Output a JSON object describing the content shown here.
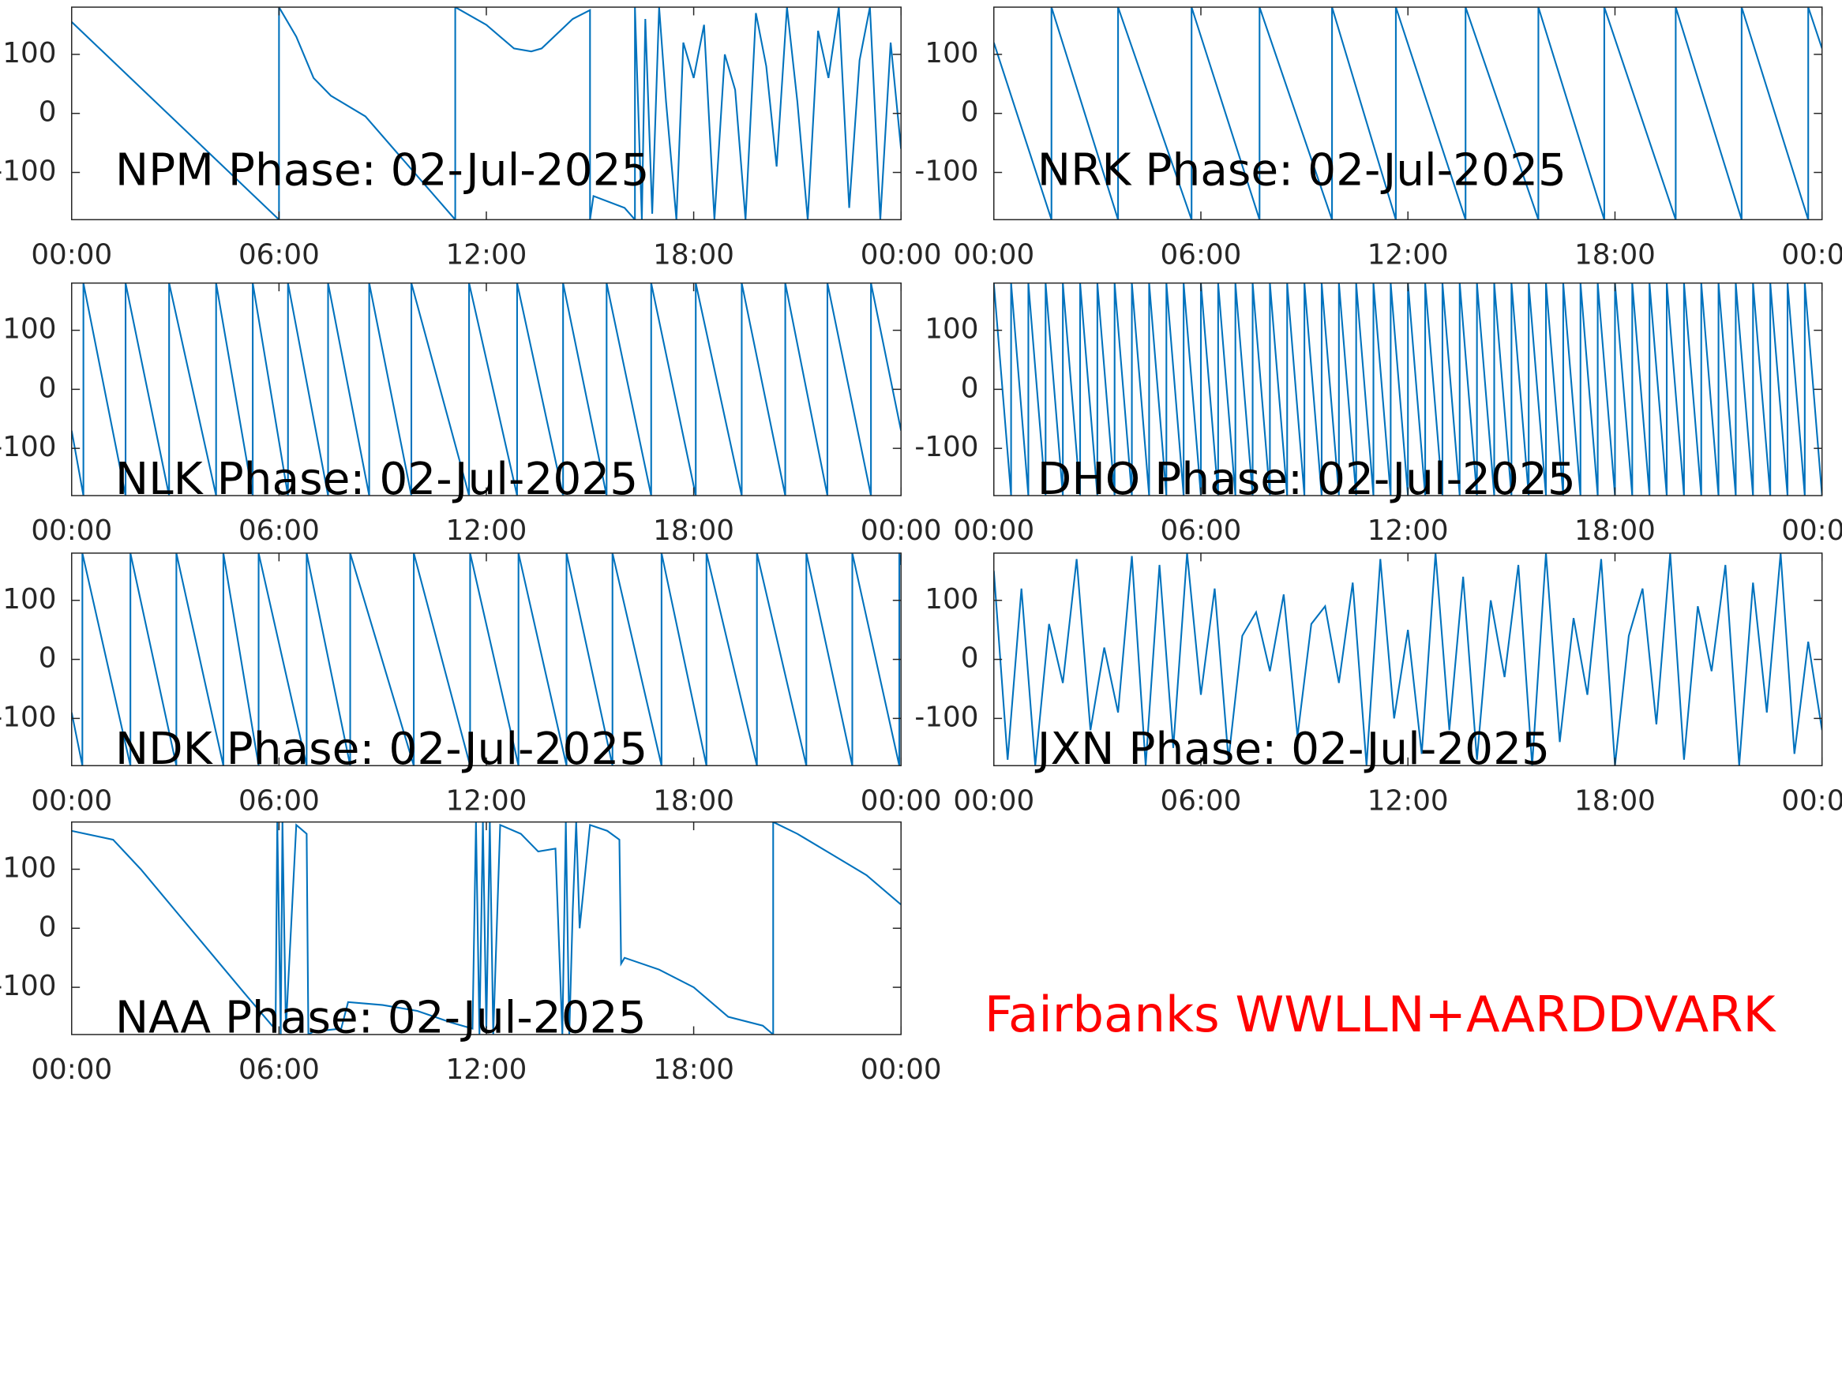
{
  "chart_data": [
    {
      "type": "line",
      "title": "NPM Phase: 02-Jul-2025",
      "color": "#0072bd",
      "x": [
        0,
        6.0,
        6.0,
        6.5,
        7.0,
        7.5,
        8.5,
        11.1,
        11.1,
        12.0,
        12.8,
        13.3,
        13.6,
        14.5,
        15.0,
        15.0,
        15.1,
        16.0,
        16.3,
        16.3,
        16.5,
        16.6,
        16.8,
        17.0,
        17.2,
        17.5,
        17.7,
        18.0,
        18.3,
        18.6,
        18.9,
        19.2,
        19.5,
        19.8,
        20.1,
        20.4,
        20.7,
        21.0,
        21.3,
        21.6,
        21.9,
        22.2,
        22.5,
        22.8,
        23.1,
        23.4,
        23.7,
        24.0
      ],
      "values": [
        155,
        -180,
        180,
        130,
        60,
        30,
        -5,
        -180,
        180,
        150,
        110,
        105,
        110,
        160,
        175,
        -180,
        -140,
        -160,
        -180,
        180,
        -180,
        160,
        -170,
        180,
        20,
        -180,
        120,
        60,
        150,
        -180,
        100,
        40,
        -180,
        170,
        80,
        -90,
        180,
        20,
        -180,
        140,
        60,
        180,
        -160,
        90,
        180,
        -180,
        120,
        -60
      ],
      "xlim": [
        0,
        24
      ],
      "xticks": [
        {
          "value": 0,
          "label": "00:00"
        },
        {
          "value": 6,
          "label": "06:00"
        },
        {
          "value": 12,
          "label": "12:00"
        },
        {
          "value": 18,
          "label": "18:00"
        },
        {
          "value": 24,
          "label": "00:00"
        }
      ],
      "ylim": [
        -180,
        180
      ],
      "yticks": [
        -100,
        0,
        100
      ]
    },
    {
      "type": "line",
      "title": "NRK Phase: 02-Jul-2025",
      "color": "#0072bd",
      "x": [
        0,
        1.67,
        1.67,
        3.6,
        3.6,
        5.73,
        5.73,
        7.7,
        7.7,
        9.8,
        9.8,
        11.65,
        11.65,
        13.67,
        13.67,
        15.78,
        15.78,
        17.69,
        17.69,
        19.76,
        19.76,
        21.67,
        21.67,
        23.6,
        23.6,
        24
      ],
      "values": [
        120,
        -180,
        180,
        -180,
        180,
        -180,
        180,
        -180,
        180,
        -180,
        180,
        -180,
        180,
        -180,
        180,
        -180,
        180,
        -180,
        180,
        -180,
        180,
        -180,
        180,
        -180,
        180,
        110
      ],
      "xlim": [
        0,
        24
      ],
      "xticks": [
        {
          "value": 0,
          "label": "00:00"
        },
        {
          "value": 6,
          "label": "06:00"
        },
        {
          "value": 12,
          "label": "12:00"
        },
        {
          "value": 18,
          "label": "18:00"
        },
        {
          "value": 24,
          "label": "00:00"
        }
      ],
      "ylim": [
        -180,
        180
      ],
      "yticks": [
        -100,
        0,
        100
      ]
    },
    {
      "type": "line",
      "title": "NLK Phase: 02-Jul-2025",
      "color": "#0072bd",
      "x": [
        0,
        0.34,
        0.34,
        1.56,
        1.56,
        2.82,
        2.82,
        4.18,
        4.18,
        5.24,
        5.24,
        6.26,
        6.26,
        7.42,
        7.42,
        8.61,
        8.61,
        9.83,
        9.83,
        11.5,
        11.5,
        12.89,
        12.89,
        14.22,
        14.22,
        15.48,
        15.48,
        16.77,
        16.77,
        18.06,
        18.06,
        19.39,
        19.39,
        20.65,
        20.65,
        21.87,
        21.87,
        23.13,
        23.13,
        24
      ],
      "values": [
        -70,
        -180,
        180,
        -180,
        180,
        -180,
        180,
        -180,
        180,
        -180,
        180,
        -180,
        180,
        -180,
        180,
        -180,
        180,
        -180,
        180,
        -180,
        180,
        -180,
        180,
        -180,
        180,
        -180,
        180,
        -180,
        180,
        -180,
        180,
        -180,
        180,
        -180,
        180,
        -180,
        180,
        -180,
        180,
        -70
      ],
      "xlim": [
        0,
        24
      ],
      "xticks": [
        {
          "value": 0,
          "label": "00:00"
        },
        {
          "value": 6,
          "label": "06:00"
        },
        {
          "value": 12,
          "label": "12:00"
        },
        {
          "value": 18,
          "label": "18:00"
        },
        {
          "value": 24,
          "label": "00:00"
        }
      ],
      "ylim": [
        -180,
        180
      ],
      "yticks": [
        -100,
        0,
        100
      ]
    },
    {
      "type": "line",
      "title": "DHO Phase: 02-Jul-2025",
      "color": "#0072bd",
      "x": [
        0,
        0.5,
        0.5,
        1,
        1,
        1.5,
        1.5,
        2,
        2,
        2.5,
        2.5,
        3,
        3,
        3.5,
        3.5,
        4,
        4,
        4.5,
        4.5,
        5,
        5,
        5.5,
        5.5,
        6,
        6,
        6.5,
        6.5,
        7,
        7,
        7.5,
        7.5,
        8,
        8,
        8.5,
        8.5,
        9,
        9,
        9.5,
        9.5,
        10,
        10,
        10.5,
        10.5,
        11,
        11,
        11.5,
        11.5,
        12,
        12,
        12.5,
        12.5,
        13,
        13,
        13.5,
        13.5,
        14,
        14,
        14.5,
        14.5,
        15,
        15,
        15.5,
        15.5,
        16,
        16,
        16.5,
        16.5,
        17,
        17,
        17.5,
        17.5,
        18,
        18,
        18.5,
        18.5,
        19,
        19,
        19.5,
        19.5,
        20,
        20,
        20.5,
        20.5,
        21,
        21,
        21.5,
        21.5,
        22,
        22,
        22.5,
        22.5,
        23,
        23,
        23.5,
        23.5,
        24
      ],
      "values": [
        180,
        -180,
        180,
        -180,
        180,
        -180,
        180,
        -180,
        180,
        -180,
        180,
        -180,
        180,
        -180,
        180,
        -180,
        180,
        -180,
        180,
        -180,
        180,
        -180,
        180,
        -180,
        180,
        -180,
        180,
        -180,
        180,
        -180,
        180,
        -180,
        180,
        -180,
        180,
        -180,
        180,
        -180,
        180,
        -180,
        180,
        -180,
        180,
        -180,
        180,
        -180,
        180,
        -180,
        180,
        -180,
        180,
        -180,
        180,
        -180,
        180,
        -180,
        180,
        -180,
        180,
        -180,
        180,
        -180,
        180,
        -180,
        180,
        -180,
        180,
        -180,
        180,
        -180,
        180,
        -180,
        180,
        -180,
        180,
        -180,
        180,
        -180,
        180,
        -180,
        180,
        -180,
        180,
        -180,
        180,
        -180,
        180,
        -180,
        180,
        -180,
        180,
        -180,
        180,
        -180,
        180,
        -180
      ],
      "xlim": [
        0,
        24
      ],
      "xticks": [
        {
          "value": 0,
          "label": "00:00"
        },
        {
          "value": 6,
          "label": "06:00"
        },
        {
          "value": 12,
          "label": "12:00"
        },
        {
          "value": 18,
          "label": "18:00"
        },
        {
          "value": 24,
          "label": "00:00"
        }
      ],
      "ylim": [
        -180,
        180
      ],
      "yticks": [
        -100,
        0,
        100
      ]
    },
    {
      "type": "line",
      "title": "NDK Phase: 02-Jul-2025",
      "color": "#0072bd",
      "x": [
        0,
        0.31,
        0.31,
        1.7,
        1.7,
        3.03,
        3.03,
        4.39,
        4.39,
        5.41,
        5.41,
        6.8,
        6.8,
        8.06,
        8.06,
        9.9,
        9.9,
        11.53,
        11.53,
        12.93,
        12.93,
        14.32,
        14.32,
        15.65,
        15.65,
        17.07,
        17.07,
        18.37,
        18.37,
        19.83,
        19.83,
        21.26,
        21.26,
        22.59,
        22.59,
        23.95,
        23.95,
        24
      ],
      "values": [
        -90,
        -180,
        180,
        -180,
        180,
        -180,
        180,
        -180,
        180,
        -180,
        180,
        -180,
        180,
        -180,
        180,
        -180,
        180,
        -180,
        180,
        -180,
        180,
        -180,
        180,
        -180,
        180,
        -180,
        180,
        -180,
        180,
        -180,
        180,
        -180,
        180,
        -180,
        180,
        -180,
        180,
        160
      ],
      "xlim": [
        0,
        24
      ],
      "xticks": [
        {
          "value": 0,
          "label": "00:00"
        },
        {
          "value": 6,
          "label": "06:00"
        },
        {
          "value": 12,
          "label": "12:00"
        },
        {
          "value": 18,
          "label": "18:00"
        },
        {
          "value": 24,
          "label": "00:00"
        }
      ],
      "ylim": [
        -180,
        180
      ],
      "yticks": [
        -100,
        0,
        100
      ]
    },
    {
      "type": "line",
      "title": "JXN Phase: 02-Jul-2025",
      "color": "#0072bd",
      "x": [
        0,
        0.4,
        0.8,
        1.2,
        1.6,
        2,
        2.4,
        2.8,
        3.2,
        3.6,
        4,
        4.4,
        4.8,
        5.2,
        5.6,
        6,
        6.4,
        6.8,
        7.2,
        7.6,
        8,
        8.4,
        8.8,
        9.2,
        9.6,
        10,
        10.4,
        10.8,
        11.2,
        11.6,
        12,
        12.4,
        12.8,
        13.2,
        13.6,
        14,
        14.4,
        14.8,
        15.2,
        15.6,
        16,
        16.4,
        16.8,
        17.2,
        17.6,
        18,
        18.4,
        18.8,
        19.2,
        19.6,
        20,
        20.4,
        20.8,
        21.2,
        21.6,
        22,
        22.4,
        22.8,
        23.2,
        23.6,
        24
      ],
      "values": [
        150,
        -170,
        120,
        -180,
        60,
        -40,
        170,
        -120,
        20,
        -90,
        175,
        -180,
        160,
        -150,
        180,
        -60,
        120,
        -170,
        40,
        80,
        -20,
        110,
        -130,
        60,
        90,
        -40,
        130,
        -180,
        170,
        -100,
        50,
        -160,
        180,
        -120,
        140,
        -170,
        100,
        -30,
        160,
        -180,
        180,
        -140,
        70,
        -60,
        170,
        -180,
        40,
        120,
        -110,
        180,
        -170,
        90,
        -20,
        160,
        -180,
        130,
        -90,
        180,
        -160,
        30,
        -120
      ],
      "xlim": [
        0,
        24
      ],
      "xticks": [
        {
          "value": 0,
          "label": "00:00"
        },
        {
          "value": 6,
          "label": "06:00"
        },
        {
          "value": 12,
          "label": "12:00"
        },
        {
          "value": 18,
          "label": "18:00"
        },
        {
          "value": 24,
          "label": "00:00"
        }
      ],
      "ylim": [
        -180,
        180
      ],
      "yticks": [
        -100,
        0,
        100
      ]
    },
    {
      "type": "line",
      "title": "NAA Phase: 02-Jul-2025",
      "color": "#0072bd",
      "x": [
        0,
        1.2,
        2.0,
        3.0,
        4.0,
        5.0,
        5.8,
        5.9,
        5.95,
        6.05,
        6.1,
        6.2,
        6.5,
        6.8,
        6.85,
        7.0,
        7.8,
        8.0,
        9.0,
        10.0,
        11.0,
        11.6,
        11.7,
        11.8,
        11.9,
        12.0,
        12.1,
        12.2,
        12.4,
        13.0,
        13.5,
        14.0,
        14.2,
        14.3,
        14.4,
        14.5,
        14.6,
        14.7,
        15.0,
        15.5,
        15.85,
        15.9,
        16.0,
        17.0,
        18.0,
        19.0,
        20.0,
        20.3,
        20.3,
        21.0,
        22.0,
        23.0,
        24.0
      ],
      "values": [
        165,
        150,
        100,
        30,
        -40,
        -110,
        -165,
        -170,
        180,
        -180,
        180,
        -170,
        175,
        160,
        -180,
        -175,
        -170,
        -125,
        -130,
        -140,
        -160,
        -170,
        180,
        -180,
        180,
        -170,
        180,
        -180,
        175,
        160,
        130,
        135,
        -180,
        180,
        -180,
        30,
        180,
        0,
        175,
        165,
        150,
        -60,
        -50,
        -70,
        -100,
        -150,
        -165,
        -180,
        180,
        160,
        125,
        90,
        40
      ],
      "xlim": [
        0,
        24
      ],
      "xticks": [
        {
          "value": 0,
          "label": "00:00"
        },
        {
          "value": 6,
          "label": "06:00"
        },
        {
          "value": 12,
          "label": "12:00"
        },
        {
          "value": 18,
          "label": "18:00"
        },
        {
          "value": 24,
          "label": "00:00"
        }
      ],
      "ylim": [
        -180,
        180
      ],
      "yticks": [
        -100,
        0,
        100
      ]
    }
  ],
  "annotation": "Fairbanks WWLLN+AARDDVARK"
}
